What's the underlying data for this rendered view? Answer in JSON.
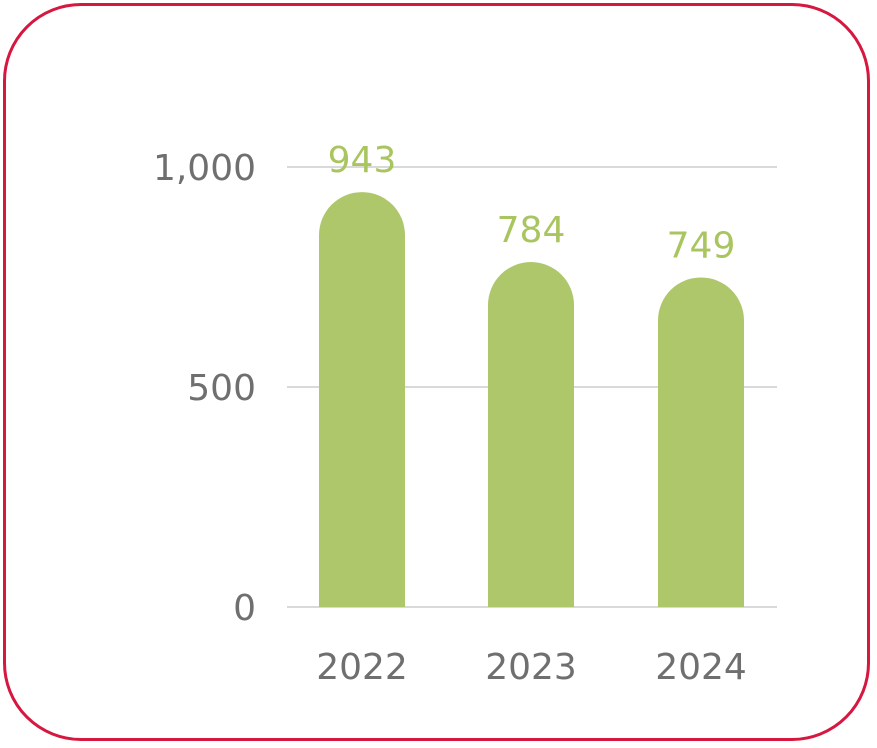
{
  "chart_data": {
    "type": "bar",
    "categories": [
      "2022",
      "2023",
      "2024"
    ],
    "values": [
      943,
      784,
      749
    ],
    "data_labels": [
      "943",
      "784",
      "749"
    ],
    "title": "",
    "xlabel": "",
    "ylabel": "",
    "ylim": [
      0,
      1000
    ],
    "yticks": [
      0,
      500,
      1000
    ],
    "ytick_labels": [
      "0",
      "500",
      "1,000"
    ],
    "grid": true,
    "legend": "none",
    "colors": {
      "bar": "#afc76b",
      "data_label": "#a9c55f",
      "tick_label": "#6f6f6f",
      "grid": "#d9d9d9",
      "border": "#d6173f"
    }
  }
}
